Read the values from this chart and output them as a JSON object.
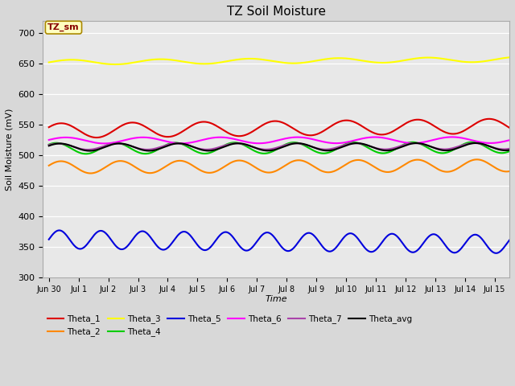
{
  "title": "TZ Soil Moisture",
  "xlabel": "Time",
  "ylabel": "Soil Moisture (mV)",
  "ylim": [
    300,
    720
  ],
  "yticks": [
    300,
    350,
    400,
    450,
    500,
    550,
    600,
    650,
    700
  ],
  "fig_width": 6.4,
  "fig_height": 4.8,
  "dpi": 100,
  "bg_color": "#e8e8e8",
  "fig_bg": "#d8d8d8",
  "series_order": [
    "Theta_1",
    "Theta_2",
    "Theta_3",
    "Theta_4",
    "Theta_5",
    "Theta_6",
    "Theta_7",
    "Theta_avg"
  ],
  "series": {
    "Theta_1": {
      "color": "#dd0000",
      "mean": 540,
      "amp": 12,
      "half_period": 1.2,
      "phase": 0.5,
      "trend": 0.5
    },
    "Theta_2": {
      "color": "#ff8800",
      "mean": 480,
      "amp": 10,
      "half_period": 1.0,
      "phase": 0.3,
      "trend": 0.2
    },
    "Theta_3": {
      "color": "#ffff00",
      "mean": 652,
      "amp": 4,
      "half_period": 1.5,
      "phase": 0.0,
      "trend": 0.3
    },
    "Theta_4": {
      "color": "#00cc00",
      "mean": 511,
      "amp": 9,
      "half_period": 1.0,
      "phase": 0.8,
      "trend": 0.1
    },
    "Theta_5": {
      "color": "#0000dd",
      "mean": 362,
      "amp": 15,
      "half_period": 0.7,
      "phase": 0.0,
      "trend": -0.5
    },
    "Theta_6": {
      "color": "#ff00ff",
      "mean": 524,
      "amp": 5,
      "half_period": 1.3,
      "phase": 0.2,
      "trend": 0.05
    },
    "Theta_7": {
      "color": "#aa44aa",
      "mean": 514,
      "amp": 5,
      "half_period": 1.0,
      "phase": 0.6,
      "trend": 0.05
    },
    "Theta_avg": {
      "color": "#000000",
      "mean": 513,
      "amp": 6,
      "half_period": 1.0,
      "phase": 0.4,
      "trend": 0.05
    }
  },
  "xtick_labels": [
    "Jun 30",
    "Jul 1",
    "Jul 2",
    "Jul 3",
    "Jul 4",
    "Jul 5",
    "Jul 6",
    "Jul 7",
    "Jul 8",
    "Jul 9",
    "Jul 10",
    "Jul 11",
    "Jul 12",
    "Jul 13",
    "Jul 14",
    "Jul 15"
  ],
  "xtick_positions": [
    0,
    1,
    2,
    3,
    4,
    5,
    6,
    7,
    8,
    9,
    10,
    11,
    12,
    13,
    14,
    15
  ],
  "xlim": [
    -0.2,
    15.5
  ],
  "annotation_text": "TZ_sm",
  "annotation_color": "#880000",
  "annotation_bg": "#ffffc0",
  "annotation_edge": "#aa8800",
  "legend_row1": [
    "Theta_1",
    "Theta_2",
    "Theta_3",
    "Theta_4",
    "Theta_5",
    "Theta_6"
  ],
  "legend_row2": [
    "Theta_7",
    "Theta_avg"
  ]
}
